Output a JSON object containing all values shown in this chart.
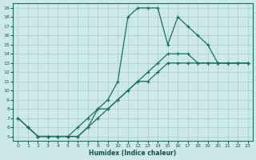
{
  "xlabel": "Humidex (Indice chaleur)",
  "bg_color": "#cce8e8",
  "grid_color": "#aacccc",
  "line_color": "#1a7060",
  "xlim": [
    -0.5,
    23.5
  ],
  "ylim": [
    4.5,
    19.5
  ],
  "yticks": [
    5,
    6,
    7,
    8,
    9,
    10,
    11,
    12,
    13,
    14,
    15,
    16,
    17,
    18,
    19
  ],
  "xticks": [
    0,
    1,
    2,
    3,
    4,
    5,
    6,
    7,
    8,
    9,
    10,
    11,
    12,
    13,
    14,
    15,
    16,
    17,
    18,
    19,
    20,
    21,
    22,
    23
  ],
  "curve1_x": [
    0,
    1,
    2,
    3,
    4,
    5,
    6,
    7,
    8,
    9,
    10,
    11,
    12,
    13,
    14,
    15,
    16,
    17,
    18,
    19,
    20,
    21,
    22,
    23
  ],
  "curve1_y": [
    7,
    6,
    5,
    5,
    5,
    5,
    5,
    6,
    8,
    9,
    11,
    18,
    19,
    19,
    19,
    15,
    18,
    17,
    16,
    15,
    13,
    13,
    13,
    13
  ],
  "curve2_x": [
    1,
    2,
    3,
    4,
    5,
    6,
    7,
    8,
    9,
    10,
    11,
    12,
    13,
    14,
    15,
    16,
    17,
    18,
    19,
    20,
    21,
    22,
    23
  ],
  "curve2_y": [
    6,
    5,
    5,
    5,
    5,
    5,
    6,
    7,
    8,
    9,
    10,
    11,
    11,
    12,
    13,
    13,
    13,
    13,
    13,
    13,
    13,
    13,
    13
  ],
  "curve3_x": [
    0,
    1,
    2,
    3,
    4,
    5,
    6,
    7,
    8,
    9,
    10,
    11,
    12,
    13,
    14,
    15,
    16,
    17,
    18,
    19,
    20,
    21,
    22,
    23
  ],
  "curve3_y": [
    7,
    6,
    5,
    5,
    5,
    5,
    6,
    7,
    8,
    8,
    9,
    10,
    11,
    12,
    13,
    14,
    14,
    14,
    13,
    13,
    13,
    13,
    13,
    13
  ]
}
